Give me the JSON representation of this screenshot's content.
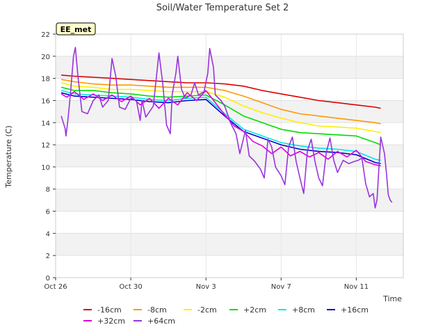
{
  "chart_data": {
    "type": "line",
    "title": "Soil/Water Temperature Set 2",
    "xlabel": "Time",
    "ylabel": "Temperature (C)",
    "badge": "EE_met",
    "xlim": [
      0,
      18.5
    ],
    "ylim": [
      0,
      22
    ],
    "yticks": [
      0,
      2,
      4,
      6,
      8,
      10,
      12,
      14,
      16,
      18,
      20,
      22
    ],
    "xticks": [
      {
        "value": 0,
        "label": "Oct 26"
      },
      {
        "value": 4,
        "label": "Oct 30"
      },
      {
        "value": 8,
        "label": "Nov 3"
      },
      {
        "value": 12,
        "label": "Nov 7"
      },
      {
        "value": 16,
        "label": "Nov 11"
      }
    ],
    "grid_bands": true,
    "legend_placement": "bottom",
    "series": [
      {
        "name": "-16cm",
        "color": "#dd0000",
        "points": [
          [
            0.3,
            18.3
          ],
          [
            1,
            18.2
          ],
          [
            2,
            18.1
          ],
          [
            3,
            18.0
          ],
          [
            4,
            17.9
          ],
          [
            5,
            17.8
          ],
          [
            6,
            17.7
          ],
          [
            7,
            17.6
          ],
          [
            8,
            17.6
          ],
          [
            9,
            17.5
          ],
          [
            10,
            17.3
          ],
          [
            11,
            16.9
          ],
          [
            12,
            16.6
          ],
          [
            13,
            16.3
          ],
          [
            14,
            16.0
          ],
          [
            15,
            15.8
          ],
          [
            16,
            15.6
          ],
          [
            17,
            15.4
          ],
          [
            17.3,
            15.3
          ]
        ]
      },
      {
        "name": "-8cm",
        "color": "#ff9900",
        "points": [
          [
            0.3,
            17.9
          ],
          [
            1,
            17.7
          ],
          [
            2,
            17.5
          ],
          [
            3,
            17.4
          ],
          [
            4,
            17.4
          ],
          [
            5,
            17.3
          ],
          [
            6,
            17.2
          ],
          [
            7,
            17.2
          ],
          [
            8,
            17.2
          ],
          [
            9,
            16.9
          ],
          [
            10,
            16.4
          ],
          [
            11,
            15.8
          ],
          [
            12,
            15.2
          ],
          [
            13,
            14.8
          ],
          [
            14,
            14.6
          ],
          [
            15,
            14.4
          ],
          [
            16,
            14.2
          ],
          [
            17,
            14.0
          ],
          [
            17.3,
            13.9
          ]
        ]
      },
      {
        "name": "-2cm",
        "color": "#ffee00",
        "points": [
          [
            0.3,
            17.6
          ],
          [
            1,
            17.3
          ],
          [
            2,
            17.2
          ],
          [
            3,
            17.0
          ],
          [
            4,
            17.0
          ],
          [
            5,
            16.9
          ],
          [
            6,
            16.8
          ],
          [
            7,
            16.8
          ],
          [
            8,
            16.8
          ],
          [
            9,
            16.3
          ],
          [
            10,
            15.5
          ],
          [
            11,
            14.9
          ],
          [
            12,
            14.4
          ],
          [
            13,
            14.0
          ],
          [
            14,
            13.7
          ],
          [
            15,
            13.6
          ],
          [
            16,
            13.5
          ],
          [
            17,
            13.2
          ],
          [
            17.3,
            13.1
          ]
        ]
      },
      {
        "name": "+2cm",
        "color": "#00dd00",
        "points": [
          [
            0.3,
            17.2
          ],
          [
            1,
            16.9
          ],
          [
            2,
            16.9
          ],
          [
            3,
            16.7
          ],
          [
            4,
            16.6
          ],
          [
            5,
            16.4
          ],
          [
            6,
            16.3
          ],
          [
            7,
            16.4
          ],
          [
            8,
            16.5
          ],
          [
            9,
            15.6
          ],
          [
            10,
            14.6
          ],
          [
            11,
            14.0
          ],
          [
            12,
            13.4
          ],
          [
            13,
            13.1
          ],
          [
            14,
            13.0
          ],
          [
            15,
            12.9
          ],
          [
            16,
            12.8
          ],
          [
            17,
            12.2
          ],
          [
            17.3,
            12.0
          ]
        ]
      },
      {
        "name": "+8cm",
        "color": "#00e5ee",
        "points": [
          [
            0.3,
            16.9
          ],
          [
            1,
            16.6
          ],
          [
            2,
            16.5
          ],
          [
            3,
            16.4
          ],
          [
            4,
            16.3
          ],
          [
            5,
            16.1
          ],
          [
            6,
            16.0
          ],
          [
            7,
            16.2
          ],
          [
            8,
            16.3
          ],
          [
            9,
            14.8
          ],
          [
            10,
            13.4
          ],
          [
            11,
            12.8
          ],
          [
            12,
            12.2
          ],
          [
            13,
            11.9
          ],
          [
            14,
            11.7
          ],
          [
            15,
            11.6
          ],
          [
            16,
            11.4
          ],
          [
            17,
            10.7
          ],
          [
            17.3,
            10.6
          ]
        ]
      },
      {
        "name": "+16cm",
        "color": "#0000cc",
        "points": [
          [
            0.3,
            16.7
          ],
          [
            1,
            16.4
          ],
          [
            2,
            16.3
          ],
          [
            3,
            16.2
          ],
          [
            4,
            16.1
          ],
          [
            5,
            15.9
          ],
          [
            6,
            15.8
          ],
          [
            7,
            16.0
          ],
          [
            8,
            16.1
          ],
          [
            9,
            14.6
          ],
          [
            10,
            13.2
          ],
          [
            11,
            12.6
          ],
          [
            12,
            12.0
          ],
          [
            13,
            11.6
          ],
          [
            14,
            11.4
          ],
          [
            15,
            11.3
          ],
          [
            16,
            11.1
          ],
          [
            17,
            10.4
          ],
          [
            17.3,
            10.3
          ]
        ]
      },
      {
        "name": "+32cm",
        "color": "#dd00dd",
        "points": [
          [
            0.3,
            16.6
          ],
          [
            0.6,
            16.3
          ],
          [
            1,
            16.8
          ],
          [
            1.5,
            16.1
          ],
          [
            2,
            16.6
          ],
          [
            2.5,
            16.0
          ],
          [
            3,
            16.5
          ],
          [
            3.5,
            15.9
          ],
          [
            4,
            16.4
          ],
          [
            4.5,
            15.6
          ],
          [
            5,
            16.2
          ],
          [
            5.5,
            15.3
          ],
          [
            6,
            16.2
          ],
          [
            6.5,
            15.6
          ],
          [
            7,
            16.7
          ],
          [
            7.5,
            16.0
          ],
          [
            8,
            16.9
          ],
          [
            8.5,
            15.8
          ],
          [
            9,
            14.7
          ],
          [
            9.5,
            13.7
          ],
          [
            10,
            13.2
          ],
          [
            10.5,
            12.3
          ],
          [
            11,
            11.9
          ],
          [
            11.5,
            11.2
          ],
          [
            12,
            11.8
          ],
          [
            12.5,
            11.0
          ],
          [
            13,
            11.4
          ],
          [
            13.5,
            10.9
          ],
          [
            14,
            11.3
          ],
          [
            14.5,
            10.7
          ],
          [
            15,
            11.4
          ],
          [
            15.5,
            10.9
          ],
          [
            16,
            11.5
          ],
          [
            16.5,
            10.5
          ],
          [
            17,
            10.2
          ],
          [
            17.3,
            10.1
          ]
        ]
      },
      {
        "name": "+64cm",
        "color": "#9933dd",
        "points": [
          [
            0.3,
            14.6
          ],
          [
            0.5,
            13.5
          ],
          [
            0.55,
            12.8
          ],
          [
            0.65,
            14.2
          ],
          [
            0.8,
            16.8
          ],
          [
            0.95,
            20.0
          ],
          [
            1.05,
            20.8
          ],
          [
            1.2,
            18.0
          ],
          [
            1.4,
            15.0
          ],
          [
            1.7,
            14.8
          ],
          [
            2.0,
            16.0
          ],
          [
            2.3,
            16.5
          ],
          [
            2.5,
            15.4
          ],
          [
            2.8,
            16.0
          ],
          [
            3.0,
            19.8
          ],
          [
            3.2,
            18.2
          ],
          [
            3.4,
            15.4
          ],
          [
            3.7,
            15.2
          ],
          [
            4.0,
            16.2
          ],
          [
            4.3,
            16.0
          ],
          [
            4.5,
            14.2
          ],
          [
            4.6,
            16.0
          ],
          [
            4.8,
            14.5
          ],
          [
            5.2,
            15.5
          ],
          [
            5.5,
            20.3
          ],
          [
            5.7,
            17.5
          ],
          [
            5.9,
            13.8
          ],
          [
            6.1,
            13.0
          ],
          [
            6.2,
            16.5
          ],
          [
            6.4,
            18.5
          ],
          [
            6.5,
            20.0
          ],
          [
            6.7,
            17.0
          ],
          [
            6.9,
            16.2
          ],
          [
            7.2,
            16.5
          ],
          [
            7.4,
            17.6
          ],
          [
            7.6,
            16.5
          ],
          [
            7.9,
            16.8
          ],
          [
            8.1,
            18.5
          ],
          [
            8.2,
            20.7
          ],
          [
            8.4,
            19.0
          ],
          [
            8.5,
            16.5
          ],
          [
            8.8,
            16.0
          ],
          [
            9.0,
            15.5
          ],
          [
            9.3,
            14.0
          ],
          [
            9.6,
            13.0
          ],
          [
            9.8,
            11.2
          ],
          [
            10.1,
            13.3
          ],
          [
            10.3,
            11.0
          ],
          [
            10.6,
            10.5
          ],
          [
            10.9,
            9.8
          ],
          [
            11.1,
            9.0
          ],
          [
            11.3,
            12.5
          ],
          [
            11.5,
            11.8
          ],
          [
            11.7,
            10.0
          ],
          [
            12.0,
            9.2
          ],
          [
            12.2,
            8.4
          ],
          [
            12.4,
            11.8
          ],
          [
            12.6,
            12.7
          ],
          [
            12.8,
            10.5
          ],
          [
            13.0,
            9.0
          ],
          [
            13.2,
            7.6
          ],
          [
            13.4,
            11.5
          ],
          [
            13.6,
            12.5
          ],
          [
            13.8,
            10.5
          ],
          [
            14.0,
            9.0
          ],
          [
            14.2,
            8.3
          ],
          [
            14.4,
            11.3
          ],
          [
            14.6,
            12.6
          ],
          [
            14.8,
            10.6
          ],
          [
            15.0,
            9.5
          ],
          [
            15.3,
            10.6
          ],
          [
            15.6,
            10.3
          ],
          [
            15.9,
            10.5
          ],
          [
            16.1,
            10.6
          ],
          [
            16.3,
            10.8
          ],
          [
            16.5,
            8.5
          ],
          [
            16.7,
            7.3
          ],
          [
            16.9,
            7.6
          ],
          [
            17.0,
            6.3
          ],
          [
            17.1,
            7.0
          ],
          [
            17.3,
            12.7
          ],
          [
            17.5,
            11.2
          ],
          [
            17.6,
            9.5
          ],
          [
            17.7,
            7.5
          ],
          [
            17.8,
            7.0
          ],
          [
            17.9,
            6.8
          ]
        ]
      }
    ]
  }
}
